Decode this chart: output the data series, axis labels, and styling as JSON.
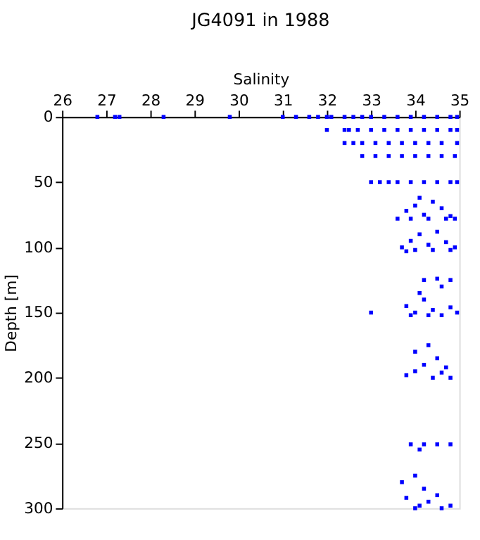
{
  "chart_data": {
    "type": "scatter",
    "title": "JG4091 in 1988",
    "xlabel": "Salinity",
    "ylabel": "Depth [m]",
    "marker": "square",
    "grid": false,
    "xlim": [
      26,
      35
    ],
    "xticks": [
      26,
      27,
      28,
      29,
      30,
      31,
      32,
      33,
      34,
      35
    ],
    "ylim": [
      300,
      0
    ],
    "yticks": [
      0,
      50,
      100,
      150,
      200,
      250,
      300
    ],
    "series": [
      {
        "color": "#0000ff",
        "x": [
          26.8,
          27.2,
          27.3,
          28.3,
          29.8,
          31.0,
          31.3,
          31.6,
          31.8,
          32.0,
          32.1,
          32.4,
          32.6,
          32.8,
          33.0,
          33.3,
          33.6,
          33.9,
          34.2,
          34.5,
          34.8,
          34.95,
          32.0,
          32.4,
          32.5,
          32.7,
          33.0,
          33.3,
          33.6,
          33.9,
          34.2,
          34.5,
          34.8,
          34.95,
          32.4,
          32.6,
          32.8,
          33.1,
          33.4,
          33.7,
          34.0,
          34.3,
          34.6,
          34.95,
          32.8,
          33.1,
          33.4,
          33.7,
          34.0,
          34.3,
          34.6,
          34.9,
          33.0,
          33.2,
          33.4,
          33.6,
          33.9,
          34.2,
          34.5,
          34.8,
          34.95,
          33.6,
          33.8,
          34.0,
          34.2,
          34.4,
          34.6,
          34.8,
          34.9,
          33.9,
          34.3,
          34.7,
          34.1,
          33.7,
          33.9,
          34.1,
          34.3,
          34.5,
          34.7,
          34.9,
          34.0,
          34.4,
          34.8,
          33.8,
          34.2,
          34.5,
          34.8,
          34.6,
          33.0,
          33.8,
          34.0,
          34.2,
          34.4,
          34.6,
          34.8,
          34.95,
          33.9,
          34.3,
          34.1,
          34.0,
          34.3,
          34.5,
          33.8,
          34.0,
          34.2,
          34.4,
          34.6,
          34.8,
          34.7,
          33.9,
          34.2,
          34.5,
          34.8,
          34.1,
          33.7,
          34.0,
          34.2,
          33.8,
          34.1,
          34.3,
          34.6,
          34.8,
          34.0,
          34.5
        ],
        "values": [
          0,
          0,
          0,
          0,
          0,
          0,
          0,
          0,
          0,
          0,
          0,
          0,
          0,
          0,
          0,
          0,
          0,
          0,
          0,
          0,
          0,
          0,
          10,
          10,
          10,
          10,
          10,
          10,
          10,
          10,
          10,
          10,
          10,
          10,
          20,
          20,
          20,
          20,
          20,
          20,
          20,
          20,
          20,
          20,
          30,
          30,
          30,
          30,
          30,
          30,
          30,
          30,
          50,
          50,
          50,
          50,
          50,
          50,
          50,
          50,
          50,
          78,
          72,
          68,
          75,
          65,
          70,
          76,
          78,
          78,
          78,
          78,
          62,
          100,
          95,
          90,
          98,
          88,
          96,
          100,
          102,
          102,
          102,
          103,
          125,
          124,
          125,
          130,
          150,
          145,
          150,
          140,
          148,
          152,
          146,
          150,
          152,
          152,
          135,
          180,
          175,
          185,
          198,
          195,
          190,
          200,
          196,
          200,
          192,
          251,
          251,
          251,
          251,
          255,
          280,
          275,
          285,
          292,
          298,
          295,
          300,
          298,
          300,
          290
        ]
      }
    ]
  }
}
